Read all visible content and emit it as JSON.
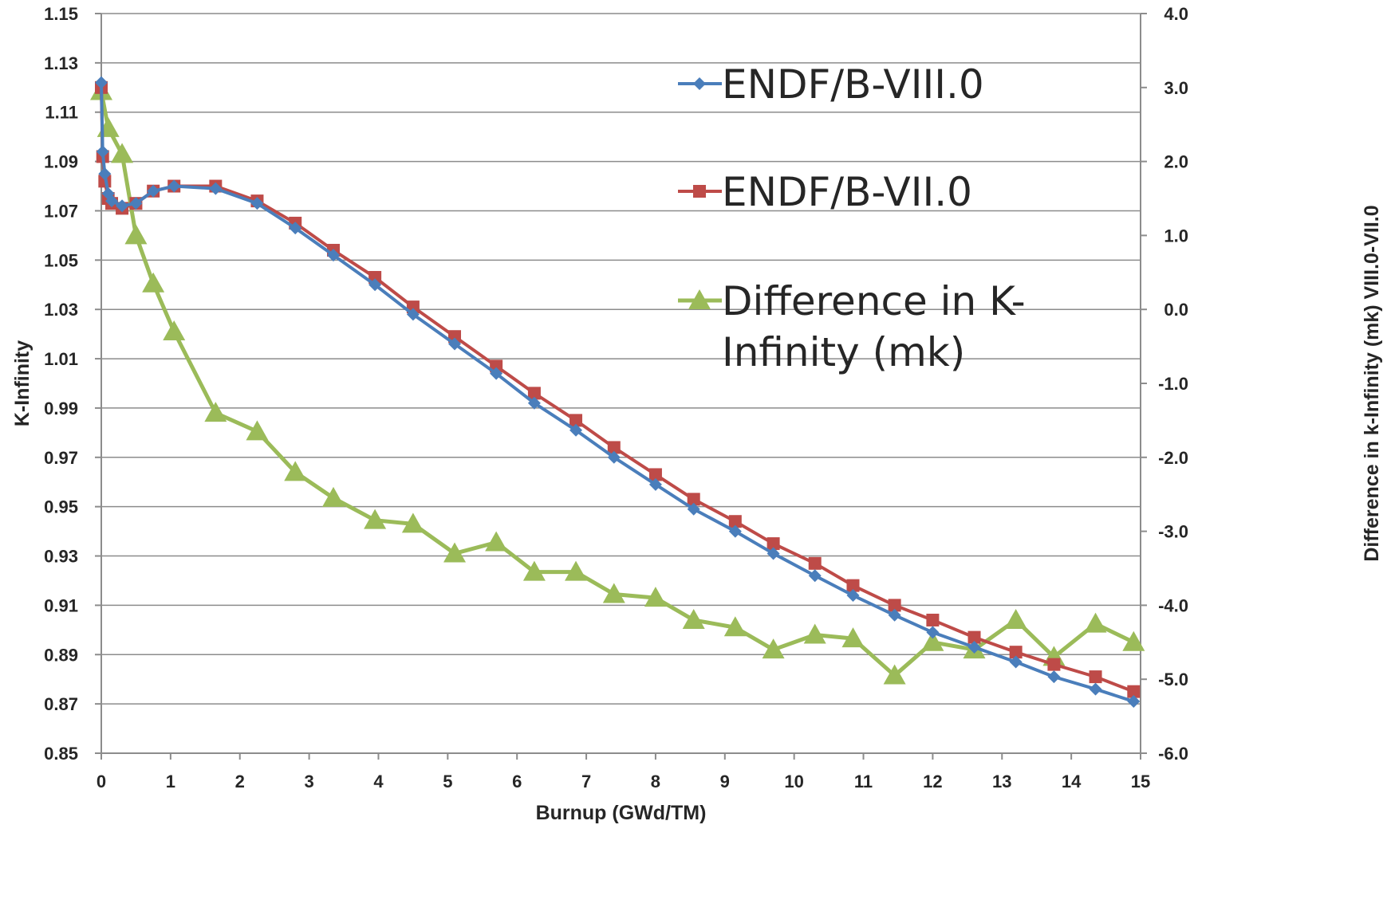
{
  "chart_data": {
    "type": "line",
    "xlabel": "Burnup (GWd/TM)",
    "ylabel": "K-Infinity",
    "y2label": "Difference in k-Infinity (mk) VIII.0-VII.0",
    "xlim": [
      0,
      15
    ],
    "ylim": [
      0.85,
      1.15
    ],
    "y2lim": [
      -6.0,
      4.0
    ],
    "x_ticks": [
      "0",
      "1",
      "2",
      "3",
      "4",
      "5",
      "6",
      "7",
      "8",
      "9",
      "10",
      "11",
      "12",
      "13",
      "14",
      "15"
    ],
    "y_ticks": [
      "0.85",
      "0.87",
      "0.89",
      "0.91",
      "0.93",
      "0.95",
      "0.97",
      "0.99",
      "1.01",
      "1.03",
      "1.05",
      "1.07",
      "1.09",
      "1.11",
      "1.13",
      "1.15"
    ],
    "y2_ticks": [
      "-6.0",
      "-5.0",
      "-4.0",
      "-3.0",
      "-2.0",
      "-1.0",
      "0.0",
      "1.0",
      "2.0",
      "3.0",
      "4.0"
    ],
    "grid": true,
    "legend_position": "top-right",
    "series": [
      {
        "name": "ENDF/B-VIII.0",
        "axis": "left",
        "color": "#4A7EBB",
        "marker": "diamond",
        "x": [
          0,
          0.02,
          0.05,
          0.1,
          0.15,
          0.3,
          0.5,
          0.75,
          1.05,
          1.65,
          2.25,
          2.8,
          3.35,
          3.95,
          4.5,
          5.1,
          5.7,
          6.25,
          6.85,
          7.4,
          8.0,
          8.55,
          9.15,
          9.7,
          10.3,
          10.85,
          11.45,
          12.0,
          12.6,
          13.2,
          13.75,
          14.35,
          14.9
        ],
        "y": [
          1.122,
          1.094,
          1.085,
          1.077,
          1.074,
          1.072,
          1.073,
          1.078,
          1.08,
          1.079,
          1.073,
          1.063,
          1.052,
          1.04,
          1.028,
          1.016,
          1.004,
          0.992,
          0.981,
          0.97,
          0.959,
          0.949,
          0.94,
          0.931,
          0.922,
          0.914,
          0.906,
          0.899,
          0.893,
          0.887,
          0.881,
          0.876,
          0.871
        ]
      },
      {
        "name": "ENDF/B-VII.0",
        "axis": "left",
        "color": "#BE4B48",
        "marker": "square",
        "x": [
          0,
          0.02,
          0.05,
          0.1,
          0.15,
          0.3,
          0.5,
          0.75,
          1.05,
          1.65,
          2.25,
          2.8,
          3.35,
          3.95,
          4.5,
          5.1,
          5.7,
          6.25,
          6.85,
          7.4,
          8.0,
          8.55,
          9.15,
          9.7,
          10.3,
          10.85,
          11.45,
          12.0,
          12.6,
          13.2,
          13.75,
          14.35,
          14.9
        ],
        "y": [
          1.12,
          1.092,
          1.082,
          1.075,
          1.073,
          1.071,
          1.073,
          1.078,
          1.08,
          1.08,
          1.074,
          1.065,
          1.054,
          1.043,
          1.031,
          1.019,
          1.007,
          0.996,
          0.985,
          0.974,
          0.963,
          0.953,
          0.944,
          0.935,
          0.927,
          0.918,
          0.91,
          0.904,
          0.897,
          0.891,
          0.886,
          0.881,
          0.875
        ]
      },
      {
        "name": "Difference in K-Infinity (mk)",
        "axis": "right",
        "color": "#9BBB59",
        "marker": "triangle",
        "x": [
          0,
          0.1,
          0.3,
          0.5,
          0.75,
          1.05,
          1.65,
          2.25,
          2.8,
          3.35,
          3.95,
          4.5,
          5.1,
          5.7,
          6.25,
          6.85,
          7.4,
          8.0,
          8.55,
          9.15,
          9.7,
          10.3,
          10.85,
          11.45,
          12.0,
          12.6,
          13.2,
          13.75,
          14.35,
          14.9
        ],
        "y": [
          2.95,
          2.45,
          2.1,
          1.0,
          0.35,
          -0.3,
          -1.4,
          -1.65,
          -2.2,
          -2.55,
          -2.85,
          -2.9,
          -3.3,
          -3.15,
          -3.55,
          -3.55,
          -3.85,
          -3.9,
          -4.2,
          -4.3,
          -4.6,
          -4.4,
          -4.45,
          -4.95,
          -4.5,
          -4.6,
          -4.2,
          -4.7,
          -4.25,
          -4.5
        ]
      }
    ]
  }
}
